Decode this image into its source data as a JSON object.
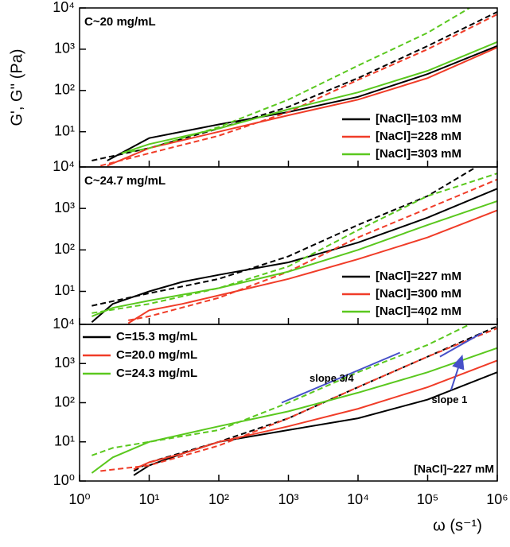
{
  "chart_data": [
    {
      "type": "line",
      "y_label": "G', G'' (Pa)",
      "annotation": "C~20 mg/mL",
      "legend": "lower right",
      "xscale": "log",
      "yscale": "log",
      "xlim": [
        1,
        1000000
      ],
      "ylim": [
        1.4,
        10000
      ],
      "yticks": [
        {
          "value": 10,
          "label": "10¹"
        },
        {
          "value": 100,
          "label": "10²"
        },
        {
          "value": 1000,
          "label": "10³"
        },
        {
          "value": 10000,
          "label": "10⁴"
        }
      ],
      "series": [
        {
          "name": "[NaCl]=103 mM",
          "color": "#000000",
          "style": "solid",
          "x": [
            2.5,
            10,
            100,
            1000,
            10000,
            100000,
            1000000
          ],
          "values": [
            2,
            7,
            15,
            30,
            70,
            250,
            1200
          ]
        },
        {
          "color": "#000000",
          "style": "dashed",
          "x": [
            1.5,
            10,
            100,
            1000,
            10000,
            100000,
            1000000
          ],
          "values": [
            2,
            4,
            12,
            40,
            200,
            1200,
            8000
          ]
        },
        {
          "name": "[NaCl]=228 mM",
          "color": "#f03c28",
          "style": "solid",
          "x": [
            2.5,
            10,
            100,
            1000,
            10000,
            100000,
            1000000
          ],
          "values": [
            1.5,
            4,
            10,
            25,
            60,
            200,
            1100
          ]
        },
        {
          "color": "#f03c28",
          "style": "dashed",
          "x": [
            2,
            10,
            100,
            1000,
            10000,
            100000,
            1000000
          ],
          "values": [
            1.5,
            3,
            8,
            30,
            180,
            1000,
            7000
          ]
        },
        {
          "name": "[NaCl]=303 mM",
          "color": "#5ac81e",
          "style": "solid",
          "x": [
            4,
            10,
            100,
            1000,
            10000,
            100000,
            1000000
          ],
          "values": [
            3,
            5,
            12,
            35,
            90,
            300,
            1500
          ]
        },
        {
          "color": "#5ac81e",
          "style": "dashed",
          "x": [
            4,
            10,
            100,
            1000,
            10000,
            100000,
            400000
          ],
          "values": [
            3,
            4,
            13,
            60,
            400,
            2500,
            10000
          ]
        }
      ]
    },
    {
      "type": "line",
      "annotation": "C~24.7 mg/mL",
      "legend": "lower right",
      "xscale": "log",
      "yscale": "log",
      "xlim": [
        1,
        1000000
      ],
      "ylim": [
        1.6,
        10000
      ],
      "yticks": [
        {
          "value": 10,
          "label": "10¹"
        },
        {
          "value": 100,
          "label": "10²"
        },
        {
          "value": 1000,
          "label": "10³"
        },
        {
          "value": 10000,
          "label": "10⁴"
        }
      ],
      "series": [
        {
          "name": "[NaCl]=227 mM",
          "color": "#000000",
          "style": "solid",
          "x": [
            1.5,
            3,
            10,
            30,
            100,
            1000,
            10000,
            100000,
            1000000
          ],
          "values": [
            1.8,
            5,
            10,
            17,
            25,
            50,
            150,
            600,
            3000
          ]
        },
        {
          "color": "#000000",
          "style": "dashed",
          "x": [
            1.5,
            10,
            100,
            1000,
            10000,
            100000,
            500000
          ],
          "values": [
            4.5,
            9,
            20,
            70,
            400,
            2000,
            10000
          ]
        },
        {
          "name": "[NaCl]=300 mM",
          "color": "#f03c28",
          "style": "solid",
          "x": [
            5,
            10,
            30,
            100,
            1000,
            10000,
            100000,
            1000000
          ],
          "values": [
            1.7,
            3.5,
            5,
            8,
            20,
            60,
            200,
            900
          ]
        },
        {
          "color": "#f03c28",
          "style": "dashed",
          "x": [
            5,
            10,
            100,
            1000,
            10000,
            100000,
            1000000
          ],
          "values": [
            2,
            2.5,
            7,
            30,
            200,
            1000,
            5000
          ]
        },
        {
          "name": "[NaCl]=402 mM",
          "color": "#5ac81e",
          "style": "solid",
          "x": [
            1.5,
            3,
            10,
            100,
            1000,
            10000,
            100000,
            1000000
          ],
          "values": [
            2.5,
            4,
            6,
            12,
            30,
            100,
            400,
            1500
          ]
        },
        {
          "color": "#5ac81e",
          "style": "dashed",
          "x": [
            1.5,
            10,
            100,
            1000,
            10000,
            100000,
            1000000
          ],
          "values": [
            3,
            5,
            12,
            40,
            300,
            2000,
            7000
          ]
        }
      ]
    },
    {
      "type": "line",
      "x_label": "ω (s⁻¹)",
      "annotation": "[NaCl]~227 mM",
      "legend": "upper left",
      "xscale": "log",
      "yscale": "log",
      "xlim": [
        1,
        1000000
      ],
      "ylim": [
        1,
        10000
      ],
      "xticks": [
        {
          "value": 1,
          "label": "10⁰"
        },
        {
          "value": 10,
          "label": "10¹"
        },
        {
          "value": 100,
          "label": "10²"
        },
        {
          "value": 1000,
          "label": "10³"
        },
        {
          "value": 10000,
          "label": "10⁴"
        },
        {
          "value": 100000,
          "label": "10⁵"
        },
        {
          "value": 1000000,
          "label": "10⁶"
        }
      ],
      "yticks": [
        {
          "value": 1,
          "label": "10⁰"
        },
        {
          "value": 10,
          "label": "10¹"
        },
        {
          "value": 100,
          "label": "10²"
        },
        {
          "value": 1000,
          "label": "10³"
        },
        {
          "value": 10000,
          "label": "10⁴"
        }
      ],
      "series": [
        {
          "name": "C=15.3 mg/mL",
          "color": "#000000",
          "style": "solid",
          "x": [
            6,
            10,
            30,
            100,
            1000,
            10000,
            100000,
            1000000
          ],
          "values": [
            1.4,
            2.5,
            5,
            10,
            20,
            40,
            120,
            600
          ]
        },
        {
          "color": "#000000",
          "style": "dashed",
          "x": [
            6,
            10,
            100,
            1000,
            10000,
            100000,
            1000000
          ],
          "values": [
            1.8,
            3,
            10,
            40,
            250,
            1500,
            9000
          ]
        },
        {
          "name": "C=20.0 mg/mL",
          "color": "#f03c28",
          "style": "solid",
          "x": [
            6,
            10,
            30,
            100,
            1000,
            10000,
            100000,
            1000000
          ],
          "values": [
            2,
            3,
            5,
            10,
            25,
            70,
            250,
            1200
          ]
        },
        {
          "color": "#f03c28",
          "style": "dashed",
          "x": [
            2,
            10,
            100,
            1000,
            10000,
            100000,
            1000000
          ],
          "values": [
            1.8,
            2.5,
            8,
            40,
            250,
            1500,
            8000
          ]
        },
        {
          "name": "C=24.3 mg/mL",
          "color": "#5ac81e",
          "style": "solid",
          "x": [
            1.5,
            3,
            10,
            100,
            1000,
            10000,
            100000,
            1000000
          ],
          "values": [
            1.6,
            4,
            10,
            25,
            60,
            180,
            600,
            2500
          ]
        },
        {
          "color": "#5ac81e",
          "style": "dashed",
          "x": [
            1.5,
            3,
            10,
            100,
            1000,
            10000,
            100000,
            400000
          ],
          "values": [
            4.5,
            7,
            10,
            20,
            100,
            600,
            3000,
            10000
          ]
        }
      ],
      "guides": [
        {
          "label": "slope 3/4",
          "color": "#4650c8",
          "x": [
            800,
            40000
          ],
          "values": [
            100,
            1900
          ]
        },
        {
          "label": "slope 1",
          "color": "#4650c8",
          "x": [
            150000,
            600000
          ],
          "values": [
            1500,
            6000
          ]
        }
      ]
    }
  ]
}
